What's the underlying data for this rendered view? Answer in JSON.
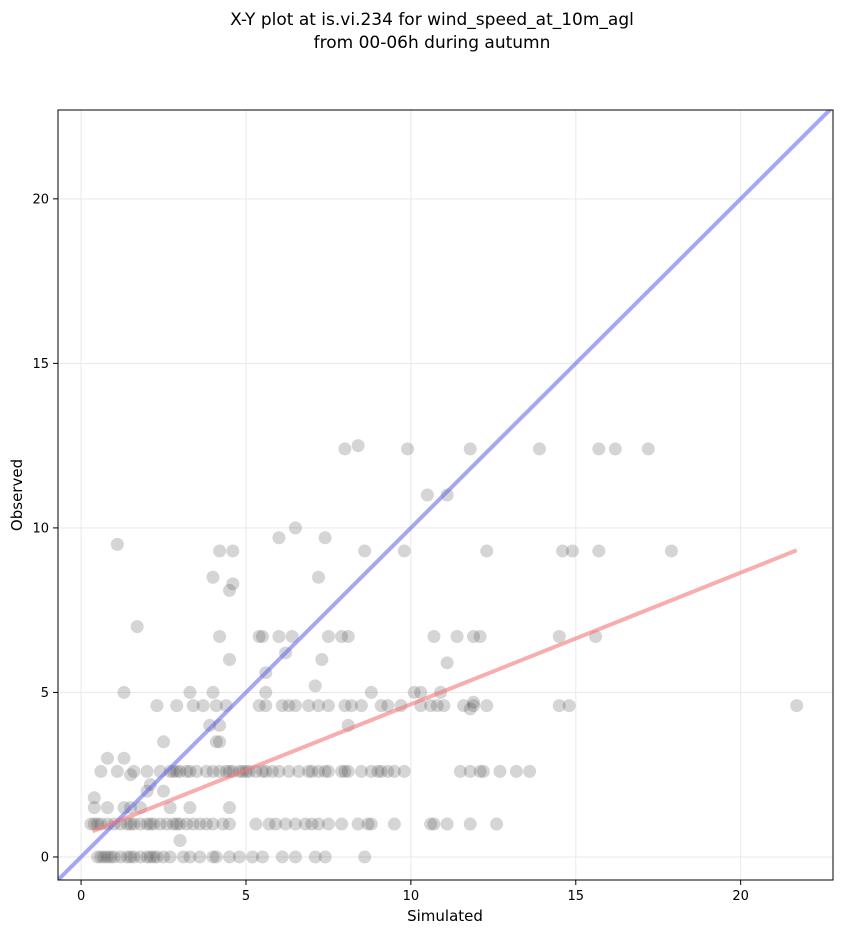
{
  "chart_data": {
    "type": "scatter",
    "title": "X-Y plot at is.vi.234 for wind_speed_at_10m_agl",
    "subtitle": "from 00-06h during autumn",
    "xlabel": "Simulated",
    "ylabel": "Observed",
    "xlim": [
      -0.7,
      22.8
    ],
    "ylim": [
      -0.7,
      22.7
    ],
    "xticks": [
      0,
      5,
      10,
      15,
      20
    ],
    "yticks": [
      0,
      5,
      10,
      15,
      20
    ],
    "grid": true,
    "colors": {
      "points": "#404040",
      "identity_line": "#6b6bef",
      "fit_line": "#f07878"
    },
    "lines": [
      {
        "name": "",
        "kind": "identity",
        "x": [
          -0.7,
          22.8
        ],
        "y": [
          -0.7,
          22.8
        ]
      },
      {
        "name": "",
        "kind": "fit",
        "x": [
          0.35,
          21.7
        ],
        "y": [
          0.78,
          9.32
        ]
      }
    ],
    "points": [
      [
        0.5,
        0
      ],
      [
        0.6,
        0
      ],
      [
        0.7,
        0
      ],
      [
        0.8,
        0
      ],
      [
        0.9,
        0
      ],
      [
        1.0,
        0
      ],
      [
        1.2,
        0
      ],
      [
        1.4,
        0
      ],
      [
        1.5,
        0
      ],
      [
        1.6,
        0
      ],
      [
        1.8,
        0
      ],
      [
        2.0,
        0
      ],
      [
        2.1,
        0
      ],
      [
        2.2,
        0
      ],
      [
        2.3,
        0
      ],
      [
        2.5,
        0
      ],
      [
        2.7,
        0
      ],
      [
        3.1,
        0
      ],
      [
        3.3,
        0
      ],
      [
        3.6,
        0
      ],
      [
        4.0,
        0
      ],
      [
        4.1,
        0
      ],
      [
        4.5,
        0
      ],
      [
        4.8,
        0
      ],
      [
        5.2,
        0
      ],
      [
        5.5,
        0
      ],
      [
        6.1,
        0
      ],
      [
        6.5,
        0
      ],
      [
        7.1,
        0
      ],
      [
        7.4,
        0
      ],
      [
        8.6,
        0
      ],
      [
        0.3,
        1
      ],
      [
        0.4,
        1
      ],
      [
        0.5,
        1
      ],
      [
        0.6,
        1
      ],
      [
        0.8,
        1
      ],
      [
        1.0,
        1
      ],
      [
        1.2,
        1
      ],
      [
        1.4,
        1
      ],
      [
        1.5,
        1
      ],
      [
        1.6,
        1
      ],
      [
        1.8,
        1
      ],
      [
        2.0,
        1
      ],
      [
        2.1,
        1
      ],
      [
        2.2,
        1
      ],
      [
        2.4,
        1
      ],
      [
        2.6,
        1
      ],
      [
        2.8,
        1
      ],
      [
        2.9,
        1
      ],
      [
        3.0,
        1
      ],
      [
        3.2,
        1
      ],
      [
        3.4,
        1
      ],
      [
        3.6,
        1
      ],
      [
        3.8,
        1
      ],
      [
        4.0,
        1
      ],
      [
        4.3,
        1
      ],
      [
        4.5,
        1
      ],
      [
        5.3,
        1
      ],
      [
        5.7,
        1
      ],
      [
        5.9,
        1
      ],
      [
        6.2,
        1
      ],
      [
        6.5,
        1
      ],
      [
        6.8,
        1
      ],
      [
        7.0,
        1
      ],
      [
        7.2,
        1
      ],
      [
        7.5,
        1
      ],
      [
        7.9,
        1
      ],
      [
        8.4,
        1
      ],
      [
        8.7,
        1
      ],
      [
        8.8,
        1
      ],
      [
        9.5,
        1
      ],
      [
        10.6,
        1
      ],
      [
        10.7,
        1
      ],
      [
        11.1,
        1
      ],
      [
        11.8,
        1
      ],
      [
        12.6,
        1
      ],
      [
        0.4,
        1.5
      ],
      [
        0.8,
        1.5
      ],
      [
        1.3,
        1.5
      ],
      [
        1.5,
        1.5
      ],
      [
        1.8,
        1.5
      ],
      [
        2.7,
        1.5
      ],
      [
        3.3,
        1.5
      ],
      [
        4.5,
        1.5
      ],
      [
        0.4,
        1.8
      ],
      [
        2.0,
        2.0
      ],
      [
        2.5,
        2.0
      ],
      [
        2.1,
        2.2
      ],
      [
        1.5,
        2.5
      ],
      [
        3.0,
        0.5
      ],
      [
        0.6,
        2.6
      ],
      [
        1.1,
        2.6
      ],
      [
        1.6,
        2.6
      ],
      [
        2.0,
        2.6
      ],
      [
        2.4,
        2.6
      ],
      [
        2.7,
        2.6
      ],
      [
        2.8,
        2.6
      ],
      [
        2.9,
        2.6
      ],
      [
        3.0,
        2.6
      ],
      [
        3.2,
        2.6
      ],
      [
        3.3,
        2.6
      ],
      [
        3.5,
        2.6
      ],
      [
        3.8,
        2.6
      ],
      [
        4.0,
        2.6
      ],
      [
        4.2,
        2.6
      ],
      [
        4.4,
        2.6
      ],
      [
        4.5,
        2.6
      ],
      [
        4.6,
        2.6
      ],
      [
        4.8,
        2.6
      ],
      [
        4.9,
        2.6
      ],
      [
        5.0,
        2.6
      ],
      [
        5.1,
        2.6
      ],
      [
        5.3,
        2.6
      ],
      [
        5.5,
        2.6
      ],
      [
        5.6,
        2.6
      ],
      [
        5.8,
        2.6
      ],
      [
        6.0,
        2.6
      ],
      [
        6.3,
        2.6
      ],
      [
        6.6,
        2.6
      ],
      [
        6.9,
        2.6
      ],
      [
        7.0,
        2.6
      ],
      [
        7.2,
        2.6
      ],
      [
        7.4,
        2.6
      ],
      [
        7.5,
        2.6
      ],
      [
        7.9,
        2.6
      ],
      [
        8.0,
        2.6
      ],
      [
        8.1,
        2.6
      ],
      [
        8.5,
        2.6
      ],
      [
        8.8,
        2.6
      ],
      [
        9.0,
        2.6
      ],
      [
        9.1,
        2.6
      ],
      [
        9.3,
        2.6
      ],
      [
        9.5,
        2.6
      ],
      [
        9.8,
        2.6
      ],
      [
        11.5,
        2.6
      ],
      [
        11.8,
        2.6
      ],
      [
        12.1,
        2.6
      ],
      [
        12.2,
        2.6
      ],
      [
        12.7,
        2.6
      ],
      [
        13.2,
        2.6
      ],
      [
        13.6,
        2.6
      ],
      [
        0.8,
        3
      ],
      [
        1.3,
        3
      ],
      [
        2.5,
        3.5
      ],
      [
        4.1,
        3.5
      ],
      [
        4.2,
        3.5
      ],
      [
        3.9,
        4
      ],
      [
        4.2,
        4
      ],
      [
        8.1,
        4
      ],
      [
        1.3,
        5
      ],
      [
        3.3,
        5
      ],
      [
        4.0,
        5
      ],
      [
        5.6,
        5
      ],
      [
        7.1,
        5.2
      ],
      [
        8.8,
        5
      ],
      [
        10.1,
        5
      ],
      [
        10.3,
        5
      ],
      [
        2.3,
        4.6
      ],
      [
        2.9,
        4.6
      ],
      [
        3.4,
        4.6
      ],
      [
        3.7,
        4.6
      ],
      [
        4.1,
        4.6
      ],
      [
        4.4,
        4.6
      ],
      [
        5.4,
        4.6
      ],
      [
        5.6,
        4.6
      ],
      [
        6.1,
        4.6
      ],
      [
        6.3,
        4.6
      ],
      [
        6.5,
        4.6
      ],
      [
        6.9,
        4.6
      ],
      [
        7.2,
        4.6
      ],
      [
        7.5,
        4.6
      ],
      [
        8.0,
        4.6
      ],
      [
        8.2,
        4.6
      ],
      [
        8.5,
        4.6
      ],
      [
        9.1,
        4.6
      ],
      [
        9.3,
        4.6
      ],
      [
        9.7,
        4.6
      ],
      [
        10.3,
        4.6
      ],
      [
        10.6,
        4.6
      ],
      [
        10.8,
        4.6
      ],
      [
        11.0,
        4.6
      ],
      [
        11.6,
        4.6
      ],
      [
        11.9,
        4.6
      ],
      [
        12.3,
        4.6
      ],
      [
        14.5,
        4.6
      ],
      [
        14.8,
        4.6
      ],
      [
        21.7,
        4.6
      ],
      [
        11.8,
        4.5
      ],
      [
        11.9,
        4.7
      ],
      [
        10.9,
        5
      ],
      [
        4.5,
        6
      ],
      [
        5.4,
        6.7
      ],
      [
        5.5,
        6.7
      ],
      [
        4.2,
        6.7
      ],
      [
        6.0,
        6.7
      ],
      [
        6.4,
        6.7
      ],
      [
        7.5,
        6.7
      ],
      [
        7.9,
        6.7
      ],
      [
        8.1,
        6.7
      ],
      [
        10.7,
        6.7
      ],
      [
        11.4,
        6.7
      ],
      [
        11.9,
        6.7
      ],
      [
        12.1,
        6.7
      ],
      [
        14.5,
        6.7
      ],
      [
        15.6,
        6.7
      ],
      [
        7.3,
        6
      ],
      [
        6.2,
        6.2
      ],
      [
        5.6,
        5.6
      ],
      [
        11.1,
        5.9
      ],
      [
        1.7,
        7
      ],
      [
        4.0,
        8.5
      ],
      [
        4.5,
        8.1
      ],
      [
        4.6,
        8.3
      ],
      [
        7.2,
        8.5
      ],
      [
        1.1,
        9.5
      ],
      [
        4.2,
        9.3
      ],
      [
        4.6,
        9.3
      ],
      [
        6.0,
        9.7
      ],
      [
        6.5,
        10
      ],
      [
        7.4,
        9.7
      ],
      [
        8.6,
        9.3
      ],
      [
        9.8,
        9.3
      ],
      [
        12.3,
        9.3
      ],
      [
        14.6,
        9.3
      ],
      [
        14.9,
        9.3
      ],
      [
        15.7,
        9.3
      ],
      [
        17.9,
        9.3
      ],
      [
        10.5,
        11
      ],
      [
        11.1,
        11
      ],
      [
        8.0,
        12.4
      ],
      [
        8.4,
        12.5
      ],
      [
        9.9,
        12.4
      ],
      [
        11.8,
        12.4
      ],
      [
        13.9,
        12.4
      ],
      [
        15.7,
        12.4
      ],
      [
        16.2,
        12.4
      ],
      [
        17.2,
        12.4
      ]
    ]
  }
}
